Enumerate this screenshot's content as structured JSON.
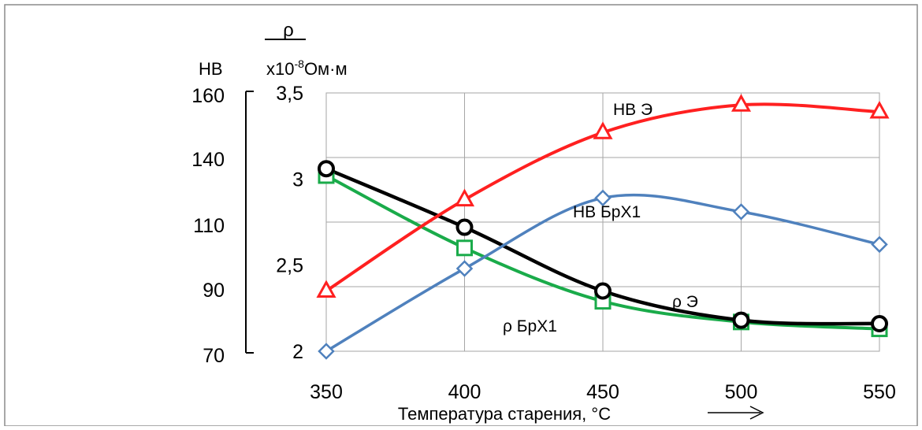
{
  "chart_data": {
    "type": "line",
    "x": [
      350,
      400,
      450,
      500,
      550
    ],
    "xlabel": "Температура старения, °С",
    "axes": {
      "hb": {
        "title": "НВ",
        "ticks": [
          "160",
          "140",
          "110",
          "90",
          "70"
        ],
        "ylim": [
          70,
          160
        ]
      },
      "rho": {
        "title_symbol": "ρ",
        "title_unit_prefix": "x10",
        "title_unit_exp": "-8",
        "title_unit_suffix": "Ом·м",
        "ticks": [
          "3,5",
          "3",
          "2,5",
          "2"
        ],
        "ylim": [
          2,
          3.5
        ]
      }
    },
    "x_ticks": [
      "350",
      "400",
      "450",
      "500",
      "550"
    ],
    "series": [
      {
        "name": "НВ Э",
        "axis": "rho",
        "color": "#ff2020",
        "marker": "triangle",
        "values": [
          2.35,
          2.88,
          3.27,
          3.43,
          3.39
        ]
      },
      {
        "name": "НВ БрХ1",
        "axis": "rho",
        "color": "#4f81bd",
        "marker": "diamond",
        "values": [
          2.0,
          2.48,
          2.89,
          2.81,
          2.62
        ]
      },
      {
        "name": "ρ Э",
        "axis": "rho",
        "color": "#000000",
        "marker": "circle",
        "values": [
          3.06,
          2.72,
          2.35,
          2.18,
          2.16
        ]
      },
      {
        "name": "ρ БрХ1",
        "axis": "rho",
        "color": "#1aab4a",
        "marker": "square",
        "values": [
          3.02,
          2.6,
          2.29,
          2.17,
          2.13
        ]
      }
    ],
    "grid": true,
    "arrow": "right"
  }
}
